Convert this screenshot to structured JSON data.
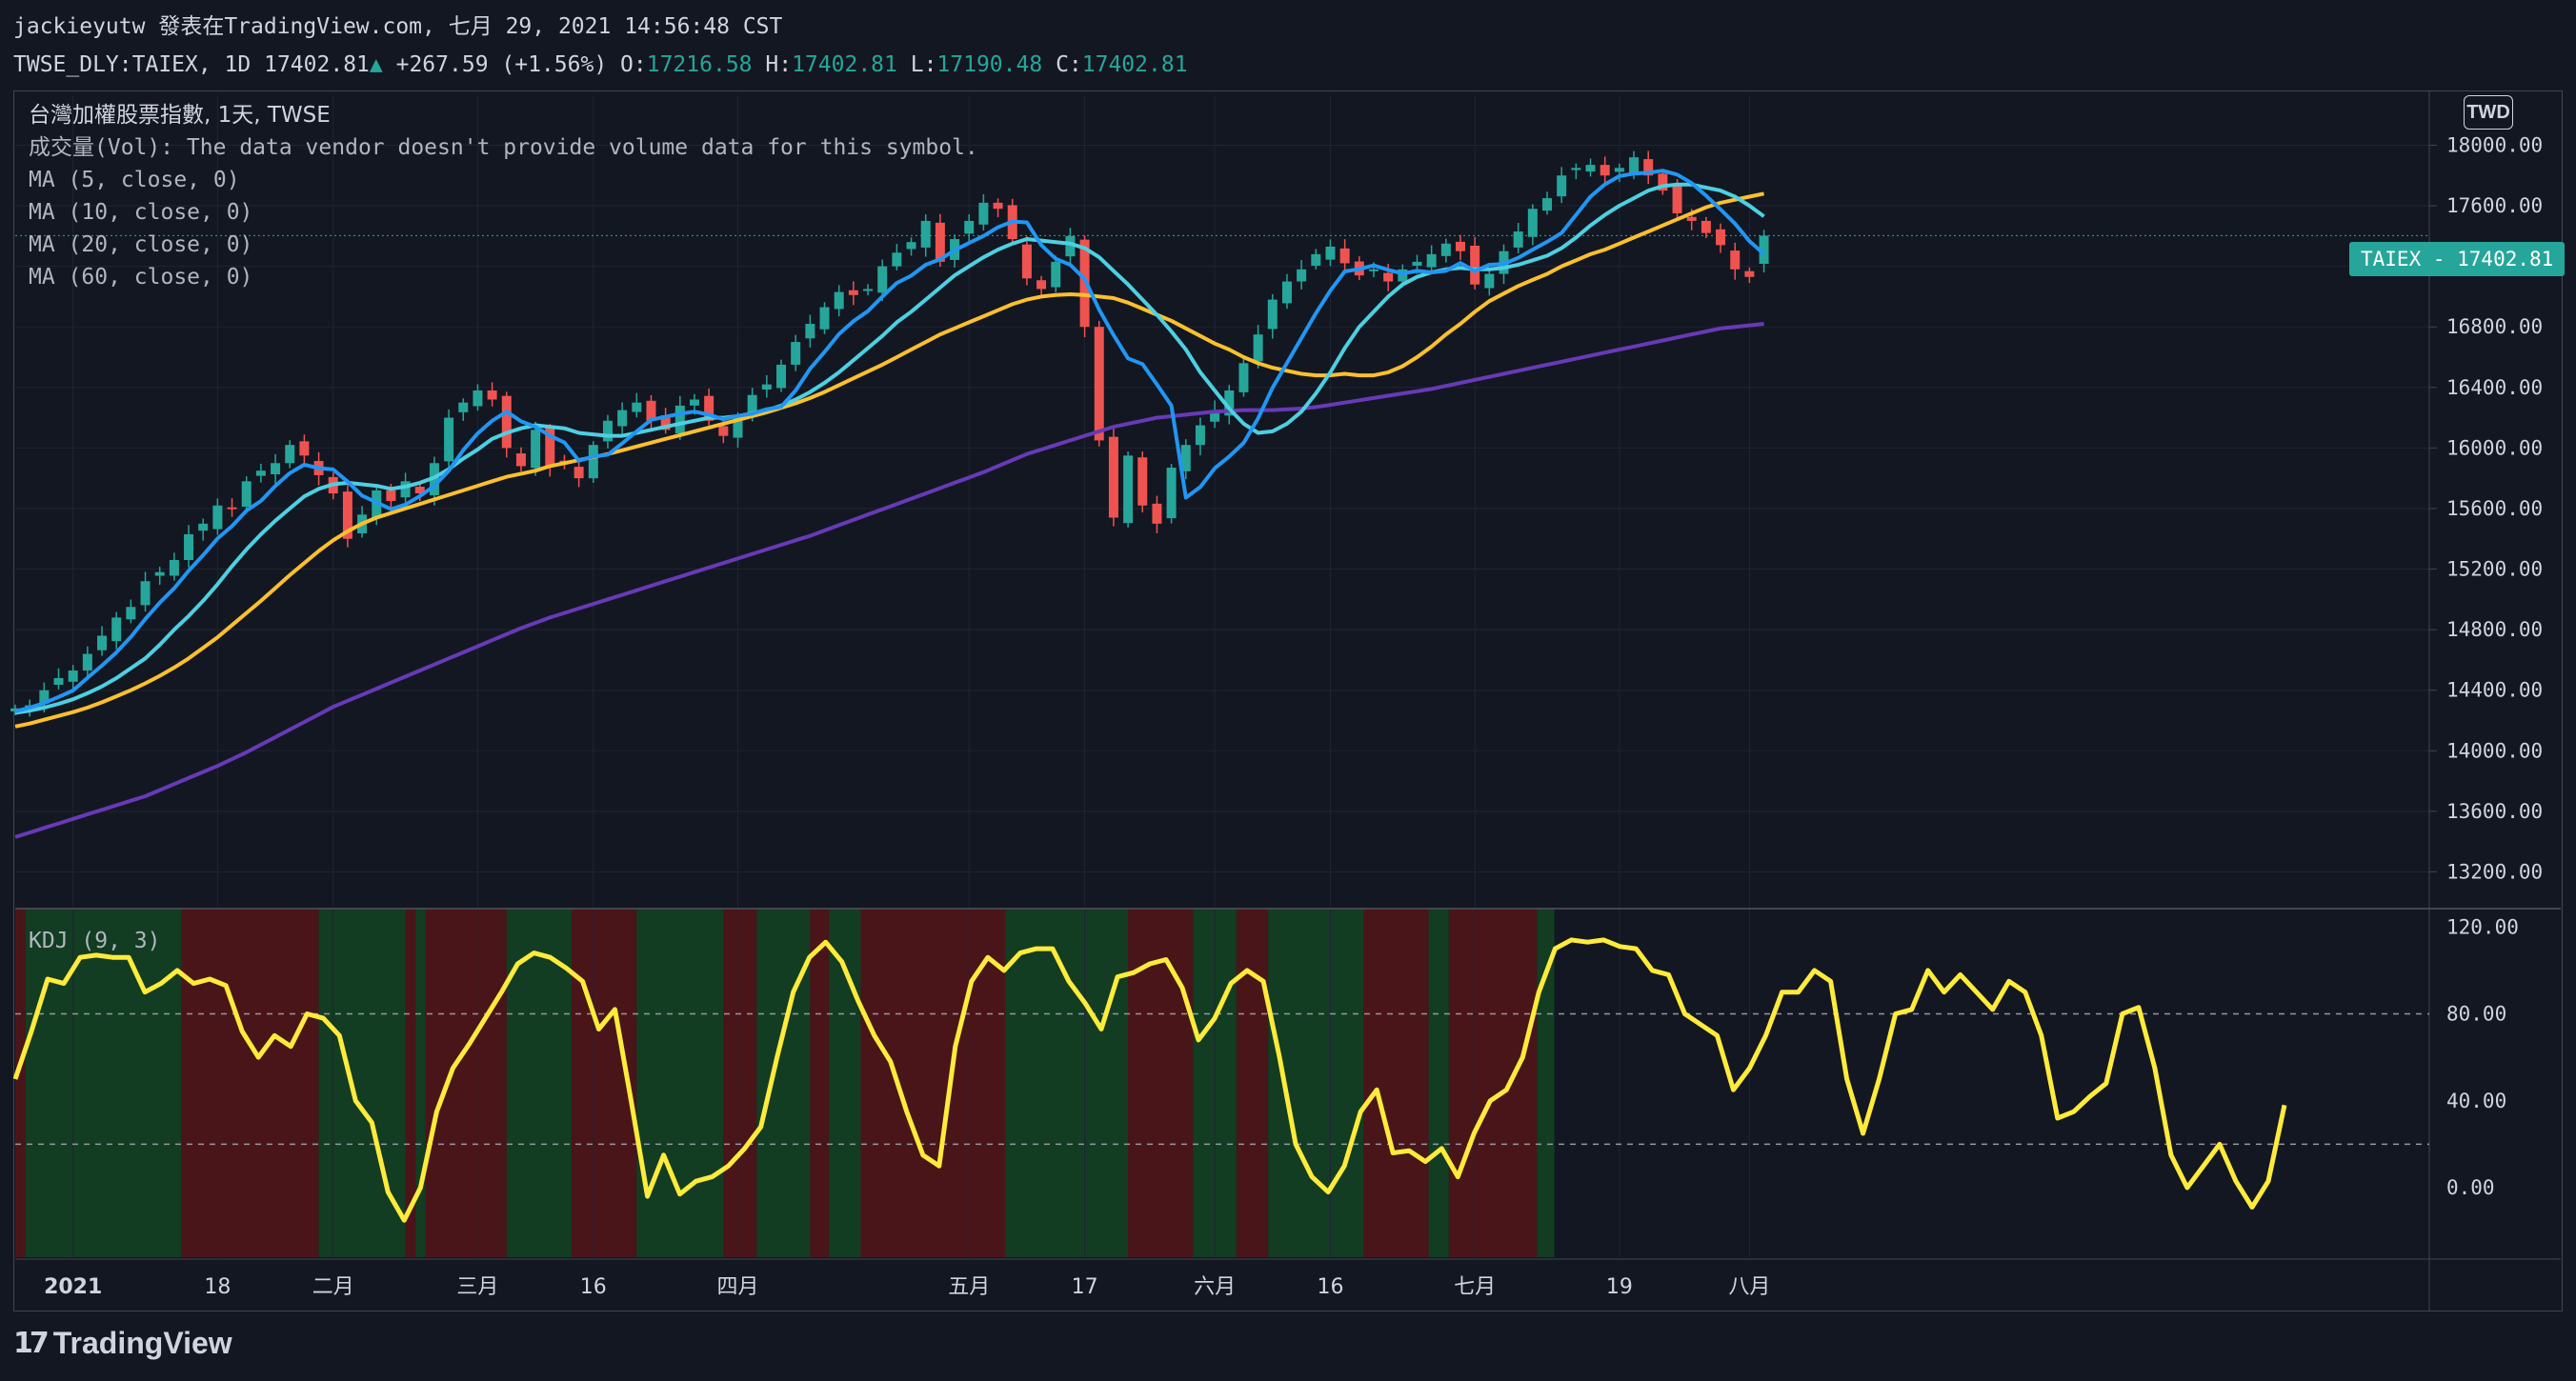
{
  "header": {
    "line1": "jackieyutw 發表在TradingView.com, 七月 29, 2021 14:56:48 CST",
    "symbol": "TWSE_DLY:TAIEX, 1D",
    "last": "17402.81",
    "change": "+267.59 (+1.56%)",
    "o_label": "O:",
    "o": "17216.58",
    "h_label": "H:",
    "h": "17402.81",
    "l_label": "L:",
    "l": "17190.48",
    "c_label": "C:",
    "c": "17402.81"
  },
  "legend": {
    "title": "台灣加權股票指數, 1天, TWSE",
    "vol": "成交量(Vol): The data vendor doesn't provide volume data for this symbol.",
    "ma5": "MA (5, close, 0)",
    "ma10": "MA (10, close, 0)",
    "ma20": "MA (20, close, 0)",
    "ma60": "MA (60, close, 0)"
  },
  "kdj_label": "KDJ (9, 3)",
  "price_tag": "TAIEX - 17402.81",
  "currency": "TWD",
  "logo": "TradingView",
  "colors": {
    "up": "#26a69a",
    "down": "#ef5350",
    "ma5": "#2196f3",
    "ma10": "#4dd0e1",
    "ma20": "#fbc02d",
    "ma60": "#673ab7",
    "kdj": "#ffeb3b",
    "bull_bg": "#123d22",
    "bear_bg": "#4a1519"
  },
  "chart_data": [
    {
      "type": "candlestick",
      "title": "台灣加權股票指數",
      "y_ticks": [
        13200,
        13600,
        14000,
        14400,
        14800,
        15200,
        15600,
        16000,
        16400,
        16800,
        17200,
        17600,
        18000
      ],
      "y_tick_labels": [
        "13200.00",
        "13600.00",
        "14000.00",
        "14400.00",
        "14800.00",
        "15200.00",
        "15600.00",
        "16000.00",
        "16400.00",
        "16800.00",
        "17200.00",
        "17600.00",
        "18000.00"
      ],
      "ylim": [
        12970,
        18330
      ],
      "x_ticks": [
        "2021",
        "18",
        "二月",
        "三月",
        "16",
        "四月",
        "五月",
        "17",
        "六月",
        "16",
        "七月",
        "19",
        "八月"
      ],
      "x_tick_index": [
        4,
        14,
        22,
        32,
        40,
        50,
        66,
        74,
        83,
        91,
        101,
        111,
        120
      ],
      "closes": [
        14280,
        14300,
        14400,
        14480,
        14530,
        14640,
        14760,
        14880,
        14950,
        15120,
        15180,
        15260,
        15430,
        15500,
        15620,
        15600,
        15780,
        15850,
        15900,
        16020,
        15950,
        15820,
        15700,
        15400,
        15560,
        15720,
        15650,
        15780,
        15700,
        15900,
        16200,
        16300,
        16380,
        16320,
        16000,
        15880,
        16120,
        15880,
        15900,
        15800,
        16020,
        16180,
        16250,
        16300,
        16180,
        16120,
        16280,
        16320,
        16180,
        16080,
        16200,
        16350,
        16420,
        16550,
        16700,
        16820,
        16930,
        17030,
        17010,
        17050,
        17200,
        17290,
        17360,
        17500,
        17230,
        17380,
        17500,
        17620,
        17580,
        17380,
        17120,
        17050,
        17230,
        17400,
        16800,
        16050,
        15540,
        15950,
        15620,
        15500,
        15870,
        16020,
        16150,
        16250,
        16380,
        16560,
        16750,
        16980,
        17100,
        17180,
        17280,
        17330,
        17220,
        17140,
        17180,
        17100,
        17180,
        17230,
        17280,
        17350,
        17300,
        17080,
        17150,
        17300,
        17430,
        17580,
        17650,
        17800,
        17850,
        17870,
        17800,
        17850,
        17920,
        17800,
        17700,
        17550,
        17500,
        17420,
        17340,
        17180,
        17130,
        17402.81
      ],
      "ma5": [
        14260,
        14285,
        14315,
        14355,
        14398,
        14482,
        14562,
        14650,
        14752,
        14870,
        14978,
        15074,
        15188,
        15292,
        15402,
        15484,
        15586,
        15650,
        15750,
        15834,
        15890,
        15867,
        15858,
        15778,
        15685,
        15640,
        15596,
        15626,
        15682,
        15750,
        15850,
        15986,
        16096,
        16180,
        16240,
        16176,
        16140,
        16080,
        16036,
        15916,
        15944,
        15956,
        16030,
        16110,
        16186,
        16206,
        16226,
        16240,
        16220,
        16190,
        16212,
        16226,
        16256,
        16272,
        16380,
        16524,
        16634,
        16752,
        16838,
        16904,
        17000,
        17090,
        17138,
        17210,
        17246,
        17306,
        17354,
        17400,
        17458,
        17496,
        17490,
        17340,
        17250,
        17210,
        17116,
        16914,
        16746,
        16592,
        16554,
        16420,
        16280,
        15672,
        15742,
        15866,
        15944,
        16034,
        16196,
        16398,
        16562,
        16726,
        16890,
        17040,
        17166,
        17182,
        17206,
        17176,
        17152,
        17170,
        17160,
        17170,
        17222,
        17168,
        17210,
        17216,
        17256,
        17310,
        17362,
        17420,
        17540,
        17660,
        17742,
        17796,
        17812,
        17818,
        17832,
        17806,
        17750,
        17666,
        17576,
        17482,
        17366,
        17282
      ],
      "ma10": [
        14250,
        14265,
        14285,
        14310,
        14340,
        14380,
        14425,
        14480,
        14545,
        14610,
        14700,
        14800,
        14890,
        14990,
        15100,
        15220,
        15330,
        15430,
        15520,
        15600,
        15680,
        15730,
        15760,
        15770,
        15760,
        15750,
        15730,
        15745,
        15770,
        15805,
        15860,
        15930,
        15990,
        16060,
        16100,
        16130,
        16150,
        16140,
        16130,
        16100,
        16090,
        16080,
        16080,
        16100,
        16120,
        16140,
        16160,
        16180,
        16200,
        16200,
        16210,
        16230,
        16250,
        16280,
        16320,
        16370,
        16430,
        16500,
        16580,
        16660,
        16740,
        16830,
        16900,
        16980,
        17060,
        17140,
        17200,
        17260,
        17310,
        17350,
        17380,
        17370,
        17360,
        17350,
        17320,
        17260,
        17170,
        17080,
        16980,
        16880,
        16770,
        16650,
        16500,
        16380,
        16260,
        16160,
        16100,
        16110,
        16160,
        16240,
        16360,
        16500,
        16660,
        16800,
        16900,
        17000,
        17080,
        17130,
        17160,
        17180,
        17190,
        17180,
        17180,
        17190,
        17210,
        17240,
        17270,
        17320,
        17390,
        17470,
        17540,
        17600,
        17650,
        17700,
        17730,
        17740,
        17740,
        17720,
        17700,
        17660,
        17600,
        17530
      ],
      "ma20": [
        14160,
        14180,
        14205,
        14230,
        14255,
        14285,
        14320,
        14360,
        14400,
        14445,
        14495,
        14550,
        14610,
        14680,
        14750,
        14830,
        14910,
        14990,
        15075,
        15160,
        15240,
        15320,
        15390,
        15450,
        15500,
        15540,
        15570,
        15600,
        15630,
        15660,
        15690,
        15720,
        15750,
        15780,
        15810,
        15830,
        15850,
        15880,
        15900,
        15920,
        15940,
        15960,
        15985,
        16010,
        16035,
        16060,
        16085,
        16110,
        16135,
        16160,
        16185,
        16210,
        16235,
        16265,
        16295,
        16330,
        16370,
        16415,
        16460,
        16505,
        16550,
        16600,
        16650,
        16700,
        16750,
        16790,
        16830,
        16870,
        16910,
        16950,
        16980,
        17000,
        17010,
        17015,
        17010,
        17000,
        16990,
        16960,
        16920,
        16880,
        16840,
        16790,
        16740,
        16690,
        16650,
        16600,
        16560,
        16530,
        16510,
        16490,
        16480,
        16480,
        16490,
        16480,
        16480,
        16500,
        16540,
        16600,
        16670,
        16750,
        16820,
        16900,
        16970,
        17020,
        17070,
        17110,
        17150,
        17200,
        17240,
        17280,
        17310,
        17350,
        17390,
        17430,
        17470,
        17510,
        17550,
        17590,
        17620,
        17640,
        17660,
        17680
      ],
      "ma60": [
        13430,
        13460,
        13490,
        13520,
        13550,
        13580,
        13610,
        13640,
        13670,
        13700,
        13740,
        13780,
        13820,
        13860,
        13900,
        13945,
        13990,
        14040,
        14090,
        14140,
        14190,
        14240,
        14290,
        14330,
        14370,
        14410,
        14450,
        14490,
        14530,
        14570,
        14610,
        14650,
        14690,
        14730,
        14770,
        14810,
        14845,
        14880,
        14910,
        14940,
        14970,
        15000,
        15030,
        15060,
        15090,
        15120,
        15150,
        15180,
        15210,
        15240,
        15270,
        15300,
        15330,
        15360,
        15390,
        15420,
        15455,
        15490,
        15525,
        15560,
        15595,
        15630,
        15665,
        15700,
        15735,
        15770,
        15805,
        15840,
        15880,
        15920,
        15960,
        15990,
        16020,
        16050,
        16080,
        16110,
        16140,
        16160,
        16180,
        16200,
        16210,
        16220,
        16230,
        16240,
        16245,
        16250,
        16250,
        16250,
        16255,
        16260,
        16270,
        16285,
        16300,
        16315,
        16330,
        16345,
        16360,
        16375,
        16390,
        16410,
        16430,
        16450,
        16470,
        16490,
        16510,
        16530,
        16550,
        16570,
        16590,
        16610,
        16630,
        16650,
        16670,
        16690,
        16710,
        16730,
        16750,
        16770,
        16790,
        16800,
        16810,
        16820
      ]
    },
    {
      "type": "line",
      "title": "KDJ (9, 3)",
      "y_ticks": [
        0,
        40,
        80,
        120
      ],
      "y_tick_labels": [
        "0.00",
        "40.00",
        "80.00",
        "120.00"
      ],
      "ylim": [
        -32,
        128
      ],
      "hlines": [
        20,
        80
      ],
      "values": [
        50,
        72,
        96,
        94,
        106,
        107,
        106,
        106,
        90,
        94,
        100,
        94,
        96,
        93,
        72,
        60,
        70,
        65,
        80,
        78,
        70,
        40,
        30,
        -2,
        -15,
        0,
        35,
        55,
        66,
        78,
        90,
        103,
        108,
        106,
        101,
        95,
        73,
        82,
        40,
        -4,
        15,
        -3,
        3,
        5,
        10,
        18,
        28,
        60,
        90,
        106,
        113,
        104,
        86,
        70,
        58,
        35,
        15,
        10,
        65,
        95,
        106,
        100,
        108,
        110,
        110,
        95,
        85,
        73,
        97,
        99,
        103,
        105,
        92,
        68,
        78,
        94,
        100,
        95,
        60,
        20,
        5,
        -2,
        10,
        35,
        45,
        16,
        17,
        12,
        18,
        5,
        25,
        40,
        45,
        60,
        90,
        110,
        114,
        113,
        114,
        111,
        110,
        100,
        98,
        80,
        75,
        70,
        45,
        55,
        70,
        90,
        90,
        100,
        95,
        50,
        25,
        50,
        80,
        82,
        100,
        90,
        98,
        90,
        82,
        95,
        90,
        70,
        32,
        35,
        42,
        48,
        80,
        83,
        55,
        15,
        0,
        10,
        20,
        3,
        -9,
        3,
        38
      ],
      "zones": [
        [
          0,
          0.7,
          "bear"
        ],
        [
          0.7,
          11.5,
          "bull"
        ],
        [
          11.5,
          21,
          "bear"
        ],
        [
          21,
          27,
          "bull"
        ],
        [
          27,
          27.7,
          "bear"
        ],
        [
          27.7,
          28.4,
          "bull"
        ],
        [
          28.4,
          34,
          "bear"
        ],
        [
          34,
          38.5,
          "bull"
        ],
        [
          38.5,
          43,
          "bear"
        ],
        [
          43,
          49,
          "bull"
        ],
        [
          49,
          51.3,
          "bear"
        ],
        [
          51.3,
          55,
          "bull"
        ],
        [
          55,
          56.3,
          "bear"
        ],
        [
          56.3,
          58.5,
          "bull"
        ],
        [
          58.5,
          68.5,
          "bear"
        ],
        [
          68.5,
          77,
          "bull"
        ],
        [
          77,
          81.5,
          "bear"
        ],
        [
          81.5,
          84.5,
          "bull"
        ],
        [
          84.5,
          86.7,
          "bear"
        ],
        [
          86.7,
          93.3,
          "bull"
        ],
        [
          93.3,
          97.8,
          "bear"
        ],
        [
          97.8,
          99.2,
          "bull"
        ],
        [
          99.2,
          105.3,
          "bear"
        ],
        [
          105.3,
          106.5,
          "bull"
        ]
      ]
    }
  ]
}
